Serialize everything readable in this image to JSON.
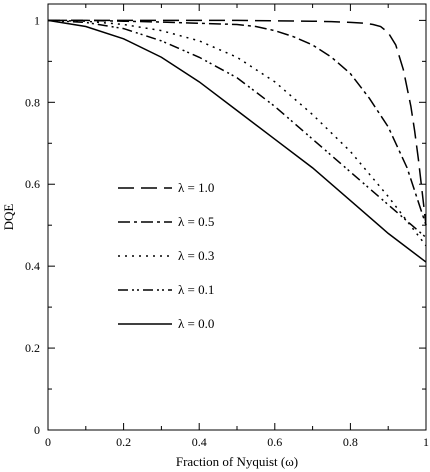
{
  "chart_data": {
    "type": "line",
    "title": "",
    "xlabel": "Fraction of Nyquist (ω)",
    "ylabel": "DQE",
    "xlim": [
      0,
      1
    ],
    "ylim": [
      0,
      1.04
    ],
    "x_ticks": [
      0,
      0.2,
      0.4,
      0.6,
      0.8,
      1
    ],
    "x_tick_labels": [
      "0",
      "0.2",
      "0.4",
      "0.6",
      "0.8",
      "1"
    ],
    "y_ticks": [
      0,
      0.2,
      0.4,
      0.6,
      0.8,
      1
    ],
    "y_tick_labels": [
      "0",
      "0.2",
      "0.4",
      "0.6",
      "0.8",
      "1"
    ],
    "grid": false,
    "legend_placement": "center-left",
    "series": [
      {
        "name": "λ = 1.0",
        "dash": "long-dash",
        "x": [
          0,
          0.1,
          0.2,
          0.3,
          0.4,
          0.5,
          0.6,
          0.7,
          0.75,
          0.8,
          0.84,
          0.86,
          0.88,
          0.9,
          0.92,
          0.94,
          0.96,
          0.97,
          0.98,
          0.99,
          1.0
        ],
        "y": [
          1.0,
          1.0,
          1.0,
          1.0,
          1.0,
          1.0,
          0.999,
          0.998,
          0.997,
          0.995,
          0.993,
          0.99,
          0.985,
          0.97,
          0.94,
          0.88,
          0.79,
          0.73,
          0.66,
          0.58,
          0.5
        ]
      },
      {
        "name": "λ = 0.5",
        "dash": "dash-dot",
        "x": [
          0,
          0.1,
          0.2,
          0.3,
          0.4,
          0.5,
          0.55,
          0.6,
          0.65,
          0.7,
          0.75,
          0.8,
          0.85,
          0.9,
          0.95,
          1.0
        ],
        "y": [
          1.0,
          1.0,
          0.998,
          0.996,
          0.993,
          0.99,
          0.985,
          0.975,
          0.96,
          0.94,
          0.91,
          0.87,
          0.81,
          0.74,
          0.64,
          0.5
        ]
      },
      {
        "name": "λ = 0.3",
        "dash": "dotted",
        "x": [
          0,
          0.1,
          0.2,
          0.3,
          0.4,
          0.5,
          0.6,
          0.7,
          0.8,
          0.9,
          1.0
        ],
        "y": [
          1.0,
          0.998,
          0.99,
          0.975,
          0.95,
          0.91,
          0.85,
          0.77,
          0.68,
          0.57,
          0.45
        ]
      },
      {
        "name": "λ = 0.1",
        "dash": "dash-dot-dot",
        "x": [
          0,
          0.1,
          0.2,
          0.3,
          0.4,
          0.5,
          0.6,
          0.7,
          0.8,
          0.9,
          1.0
        ],
        "y": [
          1.0,
          0.995,
          0.98,
          0.95,
          0.91,
          0.86,
          0.79,
          0.71,
          0.63,
          0.55,
          0.47
        ]
      },
      {
        "name": "λ = 0.0",
        "dash": "solid",
        "x": [
          0,
          0.1,
          0.2,
          0.3,
          0.4,
          0.5,
          0.6,
          0.7,
          0.8,
          0.9,
          1.0
        ],
        "y": [
          1.0,
          0.985,
          0.955,
          0.91,
          0.85,
          0.78,
          0.71,
          0.64,
          0.56,
          0.48,
          0.41
        ]
      }
    ]
  }
}
